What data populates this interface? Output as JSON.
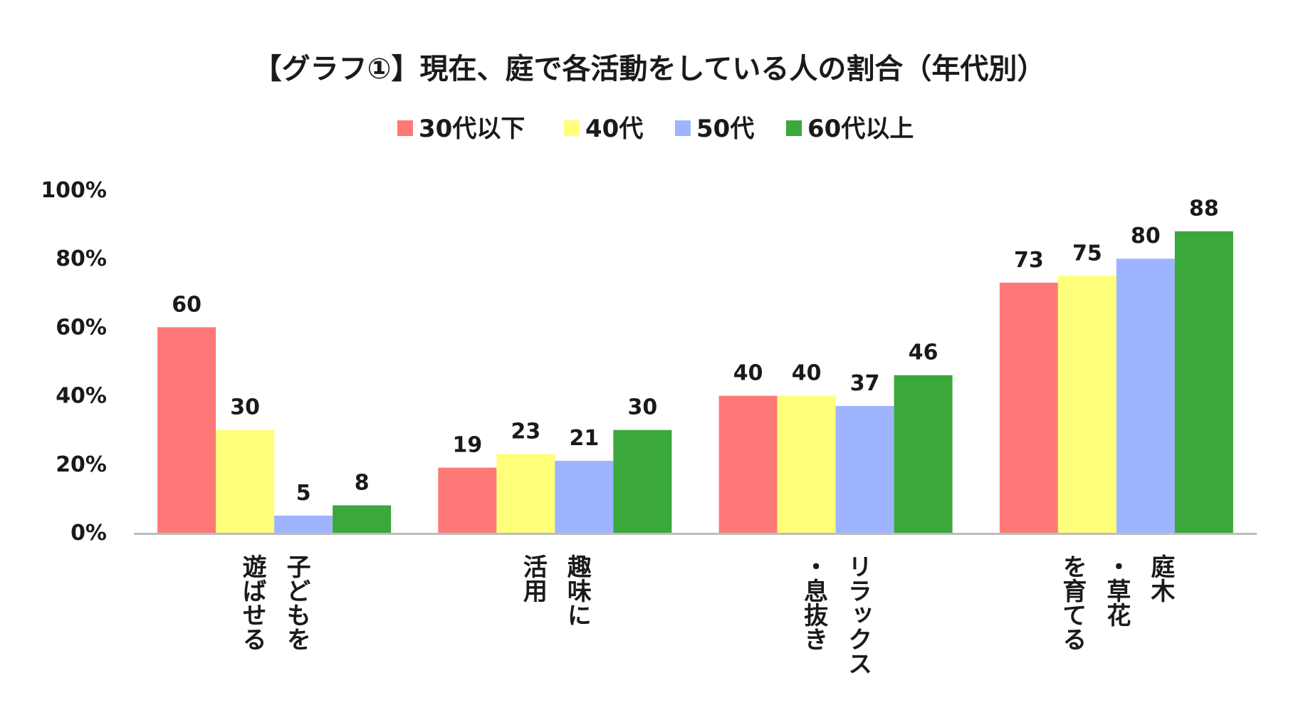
{
  "chart_data": {
    "type": "bar",
    "title": "【グラフ①】現在、庭で各活動をしている人の割合（年代別）",
    "categories": [
      [
        "子どもを",
        "遊ばせる"
      ],
      [
        "趣味に",
        "活用"
      ],
      [
        "リラックス",
        "・息抜き"
      ],
      [
        "庭木",
        "・草花",
        "を育てる"
      ]
    ],
    "series": [
      {
        "name": "30代以下",
        "color": "#ff7878",
        "values": [
          60,
          19,
          40,
          73
        ]
      },
      {
        "name": "40代",
        "color": "#ffff7a",
        "values": [
          30,
          23,
          40,
          75
        ]
      },
      {
        "name": "50代",
        "color": "#9eb4ff",
        "values": [
          5,
          21,
          37,
          80
        ]
      },
      {
        "name": "60代以上",
        "color": "#3aa83a",
        "values": [
          8,
          30,
          46,
          88
        ]
      }
    ],
    "ylim": [
      0,
      100
    ],
    "yticks": [
      "0%",
      "20%",
      "40%",
      "60%",
      "80%",
      "100%"
    ],
    "ytick_values": [
      0,
      20,
      40,
      60,
      80,
      100
    ],
    "legend_position": "top-center",
    "grid": false
  }
}
